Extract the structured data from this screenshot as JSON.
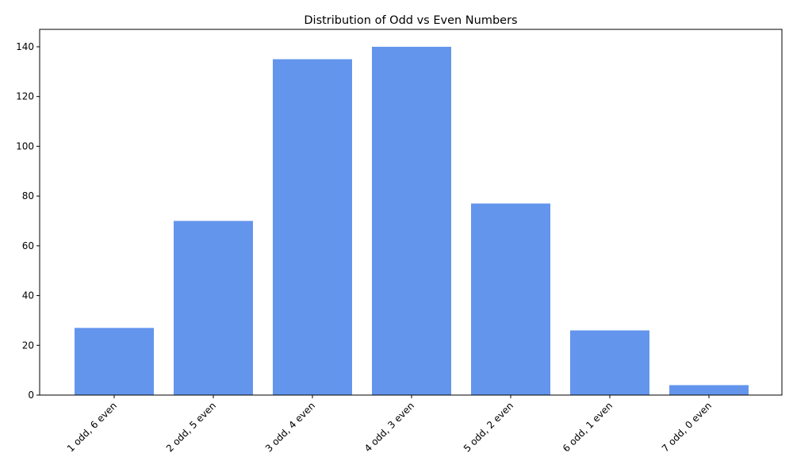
{
  "chart_data": {
    "type": "bar",
    "title": "Distribution of Odd vs Even Numbers",
    "xlabel": "",
    "ylabel": "",
    "categories": [
      "1 odd, 6 even",
      "2 odd, 5 even",
      "3 odd, 4 even",
      "4 odd, 3 even",
      "5 odd, 2 even",
      "6 odd, 1 even",
      "7 odd, 0 even"
    ],
    "values": [
      27,
      70,
      135,
      140,
      77,
      26,
      4
    ],
    "ylim": [
      0,
      147
    ],
    "yticks": [
      0,
      20,
      40,
      60,
      80,
      100,
      120,
      140
    ],
    "bar_color": "#6495ED",
    "grid": false,
    "xtick_rotation_deg": 45
  }
}
